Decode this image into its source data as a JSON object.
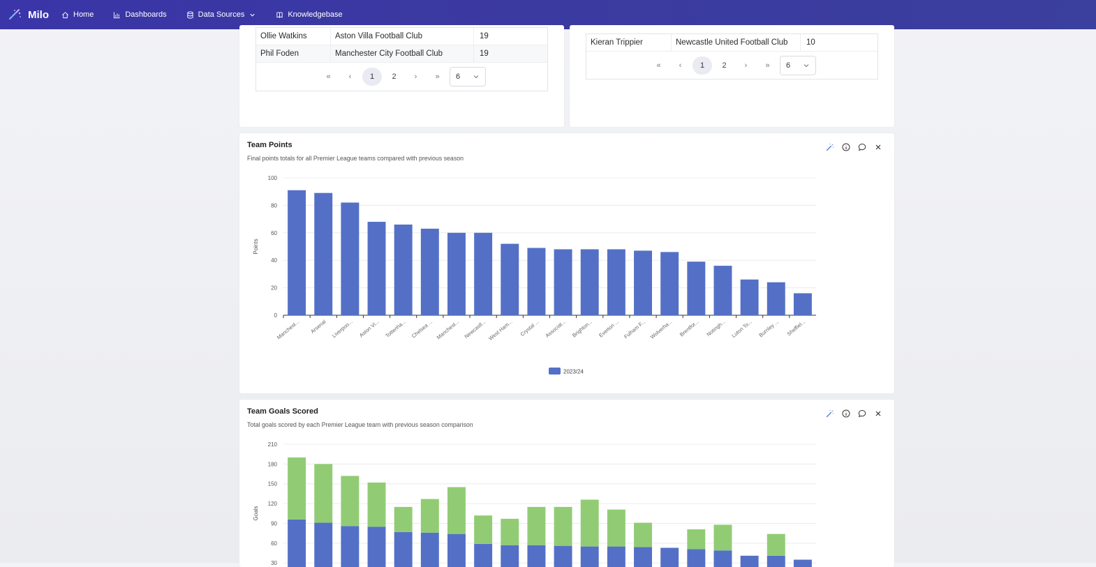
{
  "nav": {
    "brand": "Milo",
    "items": [
      {
        "label": "Home",
        "icon": "home-icon"
      },
      {
        "label": "Dashboards",
        "icon": "bar-chart-icon"
      },
      {
        "label": "Data Sources",
        "icon": "database-icon"
      },
      {
        "label": "Knowledgebase",
        "icon": "book-icon"
      }
    ]
  },
  "left_table": {
    "rows": [
      [
        "Ollie Watkins",
        "Aston Villa Football Club",
        "19"
      ],
      [
        "Phil Foden",
        "Manchester City Football Club",
        "19"
      ]
    ],
    "pager": {
      "pages": [
        "1",
        "2"
      ],
      "active": "1",
      "page_size": "6"
    }
  },
  "right_table": {
    "rows": [
      [
        "Kieran Trippier",
        "Newcastle United Football Club",
        "10"
      ]
    ],
    "pager": {
      "pages": [
        "1",
        "2"
      ],
      "active": "1",
      "page_size": "6"
    }
  },
  "team_points": {
    "title": "Team Points",
    "subtitle": "Final points totals for all Premier League teams compared with previous season"
  },
  "team_goals": {
    "title": "Team Goals Scored",
    "subtitle": "Total goals scored by each Premier League team with previous season comparison"
  },
  "colors": {
    "series1": "#5470c6",
    "series2": "#91cc75",
    "nav": "#3b3aa0"
  },
  "chart_data": [
    {
      "type": "bar",
      "title": "Team Points",
      "ylabel": "Points",
      "ylim": [
        0,
        100
      ],
      "yticks": [
        0,
        20,
        40,
        60,
        80,
        100
      ],
      "categories": [
        "Manchest...",
        "Arsenal",
        "Liverpoo...",
        "Aston Vi...",
        "Tottenha...",
        "Chelsea ...",
        "Manchest...",
        "Newcastl...",
        "West Ham...",
        "Crystal ...",
        "Associat...",
        "Brighton...",
        "Everton ...",
        "Fulham F...",
        "Wolverha...",
        "Brentfor...",
        "Notingh...",
        "Luton To...",
        "Burnley ...",
        "Sheffiel..."
      ],
      "series": [
        {
          "name": "2023/24",
          "values": [
            91,
            89,
            82,
            68,
            66,
            63,
            60,
            60,
            52,
            49,
            48,
            48,
            48,
            47,
            46,
            39,
            36,
            26,
            24,
            16
          ]
        }
      ],
      "legend": "bottom-center",
      "grid": true
    },
    {
      "type": "bar",
      "stacked": true,
      "title": "Team Goals Scored",
      "ylabel": "Goals",
      "ylim": [
        0,
        210
      ],
      "yticks": [
        30,
        60,
        90,
        120,
        150,
        180,
        210
      ],
      "series": [
        {
          "values": [
            96,
            91,
            86,
            85,
            77,
            76,
            74,
            59,
            57,
            57,
            56,
            55,
            55,
            54,
            53,
            51,
            49,
            41,
            41,
            35
          ]
        },
        {
          "values": [
            94,
            89,
            76,
            67,
            38,
            51,
            71,
            43,
            40,
            58,
            59,
            71,
            56,
            37,
            0,
            30,
            39,
            0,
            33,
            0
          ]
        }
      ],
      "grid": true
    }
  ]
}
